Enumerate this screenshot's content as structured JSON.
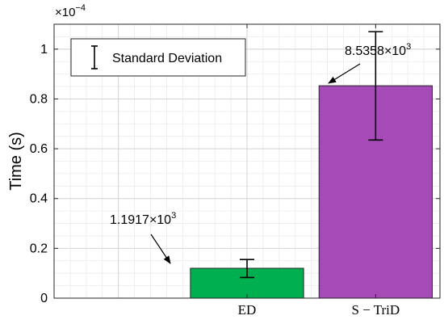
{
  "chart_data": {
    "type": "bar",
    "categories": [
      "ED",
      "S − TriD"
    ],
    "values": [
      0.12,
      0.853
    ],
    "error_bars": [
      {
        "low": 0.083,
        "high": 0.155
      },
      {
        "low": 0.635,
        "high": 1.07
      }
    ],
    "colors": [
      "#00b050",
      "#a64ab8"
    ],
    "ylabel": "Time (s)",
    "ylim": [
      0,
      1.1
    ],
    "yticks": [
      0,
      0.2,
      0.4,
      0.6,
      0.8,
      1
    ],
    "ytick_labels": [
      "0",
      "0.2",
      "0.4",
      "0.6",
      "0.8",
      "1"
    ],
    "y_exponent": {
      "base": "×10",
      "power": "−4"
    },
    "grid": true,
    "legend": {
      "label": "Standard Deviation",
      "position": "top-left"
    },
    "annotations": [
      {
        "mantissa": "1.1917×10",
        "exponent": "3",
        "target_bar": 0
      },
      {
        "mantissa": "8.5358×10",
        "exponent": "3",
        "target_bar": 1
      }
    ]
  }
}
